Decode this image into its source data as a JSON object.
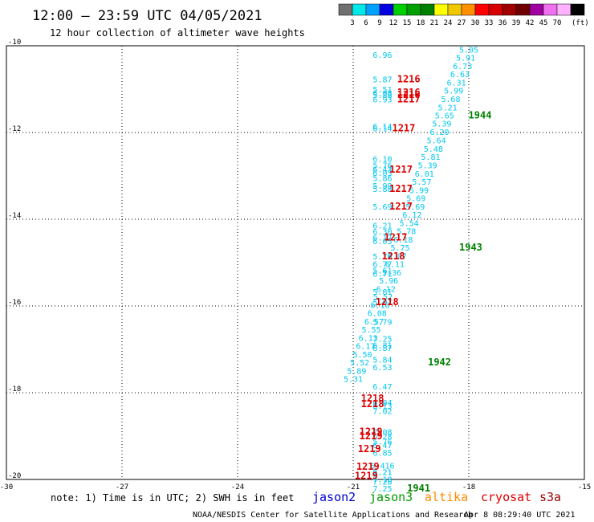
{
  "title": "12:00 – 23:59 UTC 04/05/2021",
  "subtitle": "12 hour collection of altimeter wave heights",
  "colorbar": {
    "colors": [
      "#707070",
      "#00e8e8",
      "#00a0ff",
      "#0000e0",
      "#00d000",
      "#00a000",
      "#008000",
      "#ffff00",
      "#f0c800",
      "#ff9000",
      "#ff0000",
      "#d80000",
      "#a00000",
      "#700000",
      "#a000a0",
      "#f070f0",
      "#ffb0ff",
      "#000000"
    ],
    "labels": [
      "3",
      "6",
      "9",
      "12",
      "15",
      "18",
      "21",
      "24",
      "27",
      "30",
      "33",
      "36",
      "39",
      "42",
      "45",
      "70"
    ],
    "unit": "(ft)"
  },
  "note": "note:  1) Time is in UTC; 2) SWH is in feet",
  "satellites": [
    {
      "name": "jason2",
      "color": "#0000cc"
    },
    {
      "name": "jason3",
      "color": "#009900"
    },
    {
      "name": "altika",
      "color": "#ff8c00"
    },
    {
      "name": "cryosat",
      "color": "#dd0000"
    },
    {
      "name": "s3a",
      "color": "#990000"
    }
  ],
  "footer_left": "NOAA/NESDIS Center for Satellite Applications and Research",
  "footer_right": "Apr  8 08:29:40 UTC 2021",
  "chart_data": {
    "type": "scatter",
    "xlim": [
      -30,
      -15
    ],
    "ylim": [
      -20,
      -10
    ],
    "x_ticks": [
      -30,
      -27,
      -24,
      -21,
      -18,
      -15
    ],
    "y_ticks": [
      -10,
      -12,
      -14,
      -16,
      -18,
      -20
    ],
    "grid": true,
    "series": [
      {
        "name": "jason3",
        "color": "#00c8f0",
        "points": [
          {
            "x": -18.0,
            "y": -10.08,
            "v": "5.05"
          },
          {
            "x": -18.08,
            "y": -10.27,
            "v": "5.91"
          },
          {
            "x": -18.16,
            "y": -10.46,
            "v": "6.73"
          },
          {
            "x": -18.23,
            "y": -10.65,
            "v": "6.63"
          },
          {
            "x": -18.32,
            "y": -10.84,
            "v": "6.31"
          },
          {
            "x": -18.39,
            "y": -11.03,
            "v": "5.99"
          },
          {
            "x": -18.47,
            "y": -11.22,
            "v": "5.68"
          },
          {
            "x": -18.55,
            "y": -11.42,
            "v": "5.21"
          },
          {
            "x": -18.63,
            "y": -11.6,
            "v": "5.65"
          },
          {
            "x": -18.7,
            "y": -11.79,
            "v": "5.39"
          },
          {
            "x": -18.76,
            "y": -11.98,
            "v": "6.20"
          },
          {
            "x": -18.84,
            "y": -12.18,
            "v": "5.64"
          },
          {
            "x": -18.92,
            "y": -12.37,
            "v": "5.48"
          },
          {
            "x": -18.99,
            "y": -12.56,
            "v": "5.81"
          },
          {
            "x": -19.07,
            "y": -12.75,
            "v": "5.39"
          },
          {
            "x": -19.15,
            "y": -12.94,
            "v": "6.01"
          },
          {
            "x": -19.22,
            "y": -13.13,
            "v": "5.57"
          },
          {
            "x": -19.29,
            "y": -13.32,
            "v": "5.99"
          },
          {
            "x": -19.37,
            "y": -13.51,
            "v": "5.69"
          },
          {
            "x": -19.39,
            "y": -13.7,
            "v": "5.69"
          },
          {
            "x": -19.47,
            "y": -13.89,
            "v": "6.12"
          },
          {
            "x": -19.55,
            "y": -14.08,
            "v": "5.54"
          },
          {
            "x": -19.62,
            "y": -14.27,
            "v": "5.78"
          },
          {
            "x": -19.7,
            "y": -14.46,
            "v": "6.18"
          },
          {
            "x": -19.78,
            "y": -14.65,
            "v": "5.75"
          },
          {
            "x": -19.86,
            "y": -14.84,
            "v": "6.07"
          },
          {
            "x": -19.92,
            "y": -15.03,
            "v": "6.11"
          },
          {
            "x": -20.0,
            "y": -15.22,
            "v": "5.36"
          },
          {
            "x": -20.08,
            "y": -15.41,
            "v": "5.96"
          },
          {
            "x": -20.15,
            "y": -15.6,
            "v": "6.12"
          },
          {
            "x": -20.23,
            "y": -15.78,
            "v": "5.52"
          },
          {
            "x": -20.3,
            "y": -15.97,
            "v": "6.10"
          },
          {
            "x": -20.38,
            "y": -16.16,
            "v": "6.08"
          },
          {
            "x": -20.46,
            "y": -16.35,
            "v": "6.57"
          },
          {
            "x": -20.53,
            "y": -16.54,
            "v": "5.55"
          },
          {
            "x": -20.61,
            "y": -16.73,
            "v": "6.13"
          },
          {
            "x": -20.68,
            "y": -16.92,
            "v": "6.17"
          },
          {
            "x": -20.76,
            "y": -17.11,
            "v": "5.50"
          },
          {
            "x": -20.83,
            "y": -17.3,
            "v": "5.52"
          },
          {
            "x": -20.91,
            "y": -17.49,
            "v": "5.89"
          },
          {
            "x": -21.0,
            "y": -17.68,
            "v": "5.31"
          },
          {
            "x": -20.24,
            "y": -10.2,
            "v": "6.96"
          },
          {
            "x": -20.24,
            "y": -10.77,
            "v": "5.87"
          },
          {
            "x": -20.24,
            "y": -11.0,
            "v": "5.51"
          },
          {
            "x": -20.24,
            "y": -11.08,
            "v": "6.08"
          },
          {
            "x": -20.24,
            "y": -11.13,
            "v": "5.88"
          },
          {
            "x": -20.24,
            "y": -11.23,
            "v": "6.93"
          },
          {
            "x": -20.24,
            "y": -11.85,
            "v": "6.14"
          },
          {
            "x": -20.24,
            "y": -11.9,
            "v": "6.14"
          },
          {
            "x": -20.24,
            "y": -12.6,
            "v": "6.10"
          },
          {
            "x": -20.24,
            "y": -12.75,
            "v": "5.76"
          },
          {
            "x": -20.24,
            "y": -12.84,
            "v": "6.43"
          },
          {
            "x": -20.24,
            "y": -12.93,
            "v": "6.03"
          },
          {
            "x": -20.24,
            "y": -13.05,
            "v": "5.86"
          },
          {
            "x": -20.24,
            "y": -13.22,
            "v": "5.99"
          },
          {
            "x": -20.24,
            "y": -13.3,
            "v": "5.88"
          },
          {
            "x": -20.24,
            "y": -13.7,
            "v": "5.69"
          },
          {
            "x": -20.24,
            "y": -14.14,
            "v": "6.21"
          },
          {
            "x": -20.24,
            "y": -14.28,
            "v": "6.30"
          },
          {
            "x": -20.24,
            "y": -14.42,
            "v": "6.17"
          },
          {
            "x": -20.24,
            "y": -14.5,
            "v": "6.05"
          },
          {
            "x": -20.24,
            "y": -14.85,
            "v": "5.78"
          },
          {
            "x": -20.24,
            "y": -15.03,
            "v": "6.77"
          },
          {
            "x": -20.24,
            "y": -15.18,
            "v": "5.61"
          },
          {
            "x": -20.24,
            "y": -15.25,
            "v": "6.71"
          },
          {
            "x": -20.24,
            "y": -15.67,
            "v": "5.81"
          },
          {
            "x": -20.24,
            "y": -15.91,
            "v": "5.97"
          },
          {
            "x": -20.24,
            "y": -16.36,
            "v": "5.79"
          },
          {
            "x": -20.24,
            "y": -16.75,
            "v": "7.25"
          },
          {
            "x": -20.24,
            "y": -16.9,
            "v": "6.81"
          },
          {
            "x": -20.24,
            "y": -16.96,
            "v": "6.87"
          },
          {
            "x": -20.24,
            "y": -17.23,
            "v": "5.84"
          },
          {
            "x": -20.24,
            "y": -17.41,
            "v": "6.53"
          },
          {
            "x": -20.24,
            "y": -17.85,
            "v": "6.47"
          },
          {
            "x": -20.24,
            "y": -18.22,
            "v": "6.04"
          },
          {
            "x": -20.24,
            "y": -18.3,
            "v": "6.13"
          },
          {
            "x": -20.24,
            "y": -18.42,
            "v": "7.02"
          },
          {
            "x": -20.24,
            "y": -18.9,
            "v": "7.08"
          },
          {
            "x": -20.24,
            "y": -19.0,
            "v": "6.28"
          },
          {
            "x": -20.24,
            "y": -19.12,
            "v": "5.76"
          },
          {
            "x": -20.24,
            "y": -19.2,
            "v": "6.47"
          },
          {
            "x": -20.24,
            "y": -19.38,
            "v": "6.85"
          },
          {
            "x": -20.24,
            "y": -19.68,
            "v": "6.416"
          },
          {
            "x": -20.24,
            "y": -19.82,
            "v": "7.21"
          },
          {
            "x": -20.24,
            "y": -19.99,
            "v": "7.18"
          },
          {
            "x": -20.24,
            "y": -20.05,
            "v": "7.28"
          },
          {
            "x": -20.24,
            "y": -20.2,
            "v": "7.25"
          },
          {
            "x": -20.24,
            "y": -19.82,
            "v": "6.21"
          }
        ]
      }
    ],
    "time_labels": [
      {
        "x": -19.86,
        "y": -10.77,
        "t": "1216",
        "color": "#dd0000"
      },
      {
        "x": -19.86,
        "y": -11.07,
        "t": "1216",
        "color": "#dd0000"
      },
      {
        "x": -19.86,
        "y": -11.13,
        "t": "1216",
        "color": "#dd0000"
      },
      {
        "x": -19.86,
        "y": -11.23,
        "t": "1217",
        "color": "#dd0000"
      },
      {
        "x": -19.99,
        "y": -11.9,
        "t": "1217",
        "color": "#dd0000"
      },
      {
        "x": -20.06,
        "y": -12.85,
        "t": "1217",
        "color": "#dd0000"
      },
      {
        "x": -20.06,
        "y": -13.3,
        "t": "1217",
        "color": "#dd0000"
      },
      {
        "x": -20.06,
        "y": -13.7,
        "t": "1217",
        "color": "#dd0000"
      },
      {
        "x": -20.2,
        "y": -14.42,
        "t": "1217",
        "color": "#dd0000"
      },
      {
        "x": -20.26,
        "y": -14.85,
        "t": "1218",
        "color": "#dd0000"
      },
      {
        "x": -20.42,
        "y": -15.91,
        "t": "1218",
        "color": "#dd0000"
      },
      {
        "x": -20.8,
        "y": -18.13,
        "t": "1218",
        "color": "#dd0000"
      },
      {
        "x": -20.8,
        "y": -18.26,
        "t": "1218",
        "color": "#dd0000"
      },
      {
        "x": -20.84,
        "y": -18.9,
        "t": "1219",
        "color": "#dd0000"
      },
      {
        "x": -20.84,
        "y": -19.0,
        "t": "1219",
        "color": "#dd0000"
      },
      {
        "x": -20.88,
        "y": -19.3,
        "t": "1219",
        "color": "#dd0000"
      },
      {
        "x": -20.92,
        "y": -19.7,
        "t": "1219",
        "color": "#dd0000"
      },
      {
        "x": -20.96,
        "y": -19.92,
        "t": "1219",
        "color": "#dd0000"
      },
      {
        "x": -18.01,
        "y": -11.6,
        "t": "1944",
        "color": "#008000"
      },
      {
        "x": -18.25,
        "y": -14.65,
        "t": "1943",
        "color": "#008000"
      },
      {
        "x": -19.06,
        "y": -17.3,
        "t": "1942",
        "color": "#008000"
      },
      {
        "x": -19.6,
        "y": -20.2,
        "t": "1941",
        "color": "#008000"
      }
    ]
  }
}
